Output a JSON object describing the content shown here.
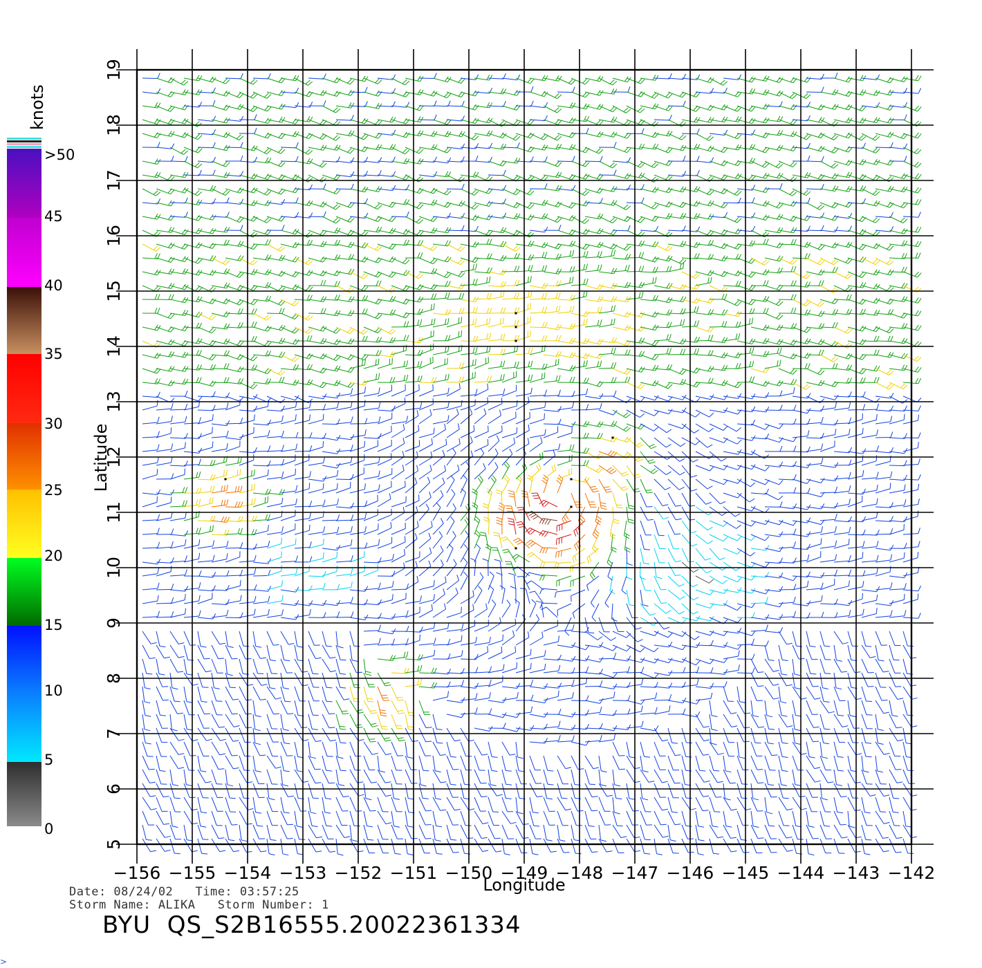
{
  "colorbar": {
    "unit": "knots",
    "labels": [
      ">50",
      "45",
      "40",
      "35",
      "30",
      "25",
      "20",
      "15",
      "10",
      "5",
      "0"
    ]
  },
  "axes": {
    "xlabel": "Longitude",
    "ylabel": "Latitude",
    "x_ticks": [
      "-156",
      "-155",
      "-154",
      "-153",
      "-152",
      "-151",
      "-150",
      "-149",
      "-148",
      "-147",
      "-146",
      "-145",
      "-144",
      "-143",
      "-142"
    ],
    "y_ticks": [
      "5",
      "6",
      "7",
      "8",
      "9",
      "10",
      "11",
      "12",
      "13",
      "14",
      "15",
      "16",
      "17",
      "18",
      "19"
    ],
    "xlim": [
      -156,
      -142
    ],
    "ylim": [
      5,
      19
    ]
  },
  "footer": {
    "date_line": "Date: 08/24/02   Time: 03:57:25",
    "storm_line": "Storm Name: ALIKA   Storm Number: 1",
    "product_id": "BYU  QS_S2B16555.20022361334"
  },
  "corner_mark": ">",
  "colors": {
    "speed_0_5": "#555555",
    "speed_5_10": "#00d0f0",
    "speed_10_15": "#1040e0",
    "speed_15_20": "#10a010",
    "speed_20_25": "#f0d000",
    "speed_25_30": "#f07000",
    "speed_30_35": "#d01818",
    "speed_35_40": "#8a3a20",
    "speed_40_45": "#f000e0",
    "speed_45_50": "#9000c0"
  }
}
